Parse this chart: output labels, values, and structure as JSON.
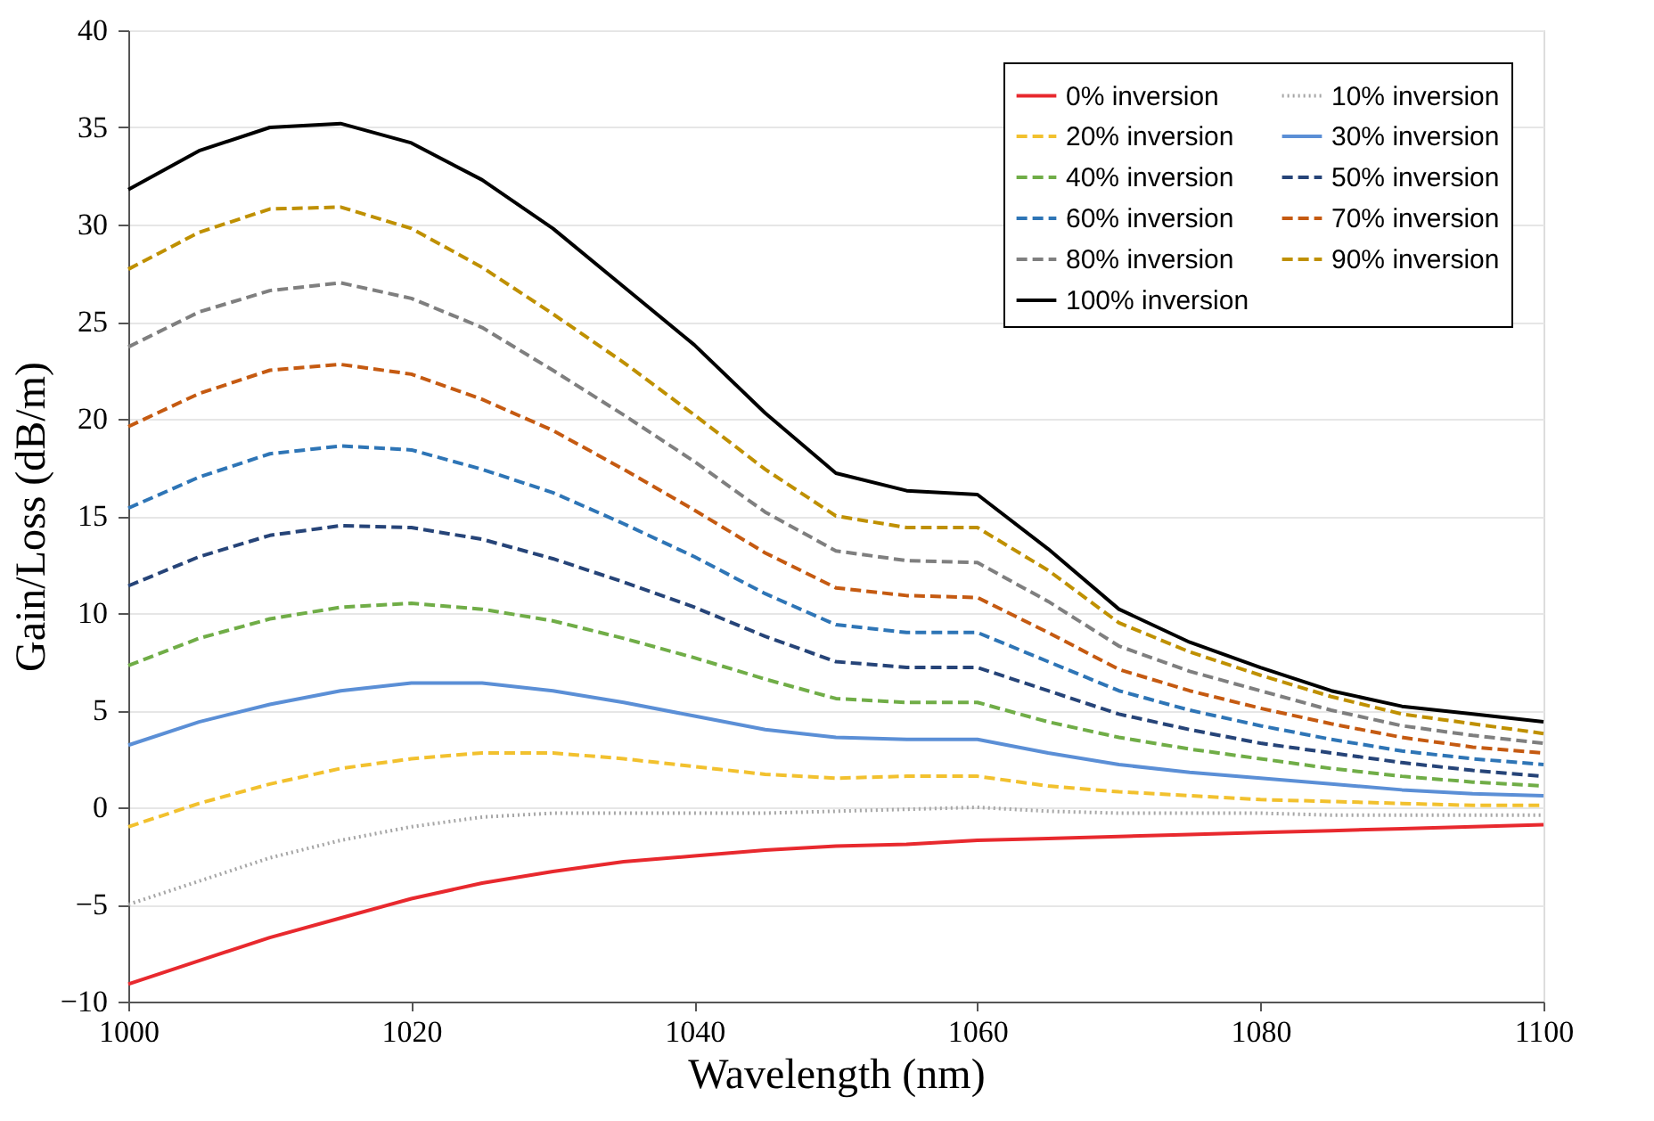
{
  "chart_data": {
    "type": "line",
    "xlabel": "Wavelength (nm)",
    "ylabel": "Gain/Loss (dB/m)",
    "x": [
      1000,
      1005,
      1010,
      1015,
      1020,
      1025,
      1030,
      1035,
      1040,
      1045,
      1050,
      1055,
      1060,
      1065,
      1070,
      1075,
      1080,
      1085,
      1090,
      1095,
      1100
    ],
    "xlim": [
      1000,
      1100
    ],
    "xticks": [
      1000,
      1020,
      1040,
      1060,
      1080,
      1100
    ],
    "ylim": [
      -10,
      40
    ],
    "yticks": [
      -10,
      -5,
      0,
      5,
      10,
      15,
      20,
      25,
      30,
      35,
      40
    ],
    "grid": "y",
    "legend": "top right",
    "marker": "none",
    "series": [
      {
        "name": "0% inversion",
        "color": "#e8292e",
        "line_style": "solid",
        "values": [
          -9.1,
          -7.9,
          -6.7,
          -5.7,
          -4.7,
          -3.9,
          -3.3,
          -2.8,
          -2.5,
          -2.2,
          -2.0,
          -1.9,
          -1.7,
          -1.6,
          -1.5,
          -1.4,
          -1.3,
          -1.2,
          -1.1,
          -1.0,
          -0.9
        ]
      },
      {
        "name": "10% inversion",
        "color": "#a6a6a6",
        "line_style": "dotted",
        "values": [
          -5.0,
          -3.8,
          -2.6,
          -1.7,
          -1.0,
          -0.5,
          -0.3,
          -0.3,
          -0.3,
          -0.3,
          -0.2,
          -0.1,
          0.0,
          -0.2,
          -0.3,
          -0.3,
          -0.3,
          -0.4,
          -0.4,
          -0.4,
          -0.4
        ]
      },
      {
        "name": "20% inversion",
        "color": "#f2c12e",
        "line_style": "dashed",
        "values": [
          -1.0,
          0.2,
          1.2,
          2.0,
          2.5,
          2.8,
          2.8,
          2.5,
          2.1,
          1.7,
          1.5,
          1.6,
          1.6,
          1.1,
          0.8,
          0.6,
          0.4,
          0.3,
          0.2,
          0.1,
          0.1
        ]
      },
      {
        "name": "30% inversion",
        "color": "#5b8fd6",
        "line_style": "solid",
        "values": [
          3.2,
          4.4,
          5.3,
          6.0,
          6.4,
          6.4,
          6.0,
          5.4,
          4.7,
          4.0,
          3.6,
          3.5,
          3.5,
          2.8,
          2.2,
          1.8,
          1.5,
          1.2,
          0.9,
          0.7,
          0.6
        ]
      },
      {
        "name": "40% inversion",
        "color": "#70ad47",
        "line_style": "dashed",
        "values": [
          7.3,
          8.7,
          9.7,
          10.3,
          10.5,
          10.2,
          9.6,
          8.7,
          7.7,
          6.6,
          5.6,
          5.4,
          5.4,
          4.4,
          3.6,
          3.0,
          2.5,
          2.0,
          1.6,
          1.3,
          1.1
        ]
      },
      {
        "name": "50% inversion",
        "color": "#264478",
        "line_style": "dashed",
        "values": [
          11.4,
          12.9,
          14.0,
          14.5,
          14.4,
          13.8,
          12.8,
          11.6,
          10.3,
          8.8,
          7.5,
          7.2,
          7.2,
          6.0,
          4.8,
          4.0,
          3.3,
          2.8,
          2.3,
          1.9,
          1.6
        ]
      },
      {
        "name": "60% inversion",
        "color": "#2e75b6",
        "line_style": "dashed",
        "values": [
          15.4,
          17.0,
          18.2,
          18.6,
          18.4,
          17.4,
          16.2,
          14.6,
          12.9,
          11.0,
          9.4,
          9.0,
          9.0,
          7.5,
          6.0,
          5.0,
          4.2,
          3.5,
          2.9,
          2.5,
          2.2
        ]
      },
      {
        "name": "70% inversion",
        "color": "#c55a11",
        "line_style": "dashed",
        "values": [
          19.6,
          21.3,
          22.5,
          22.8,
          22.3,
          21.0,
          19.4,
          17.4,
          15.3,
          13.1,
          11.3,
          10.9,
          10.8,
          9.0,
          7.1,
          6.0,
          5.1,
          4.3,
          3.6,
          3.1,
          2.8
        ]
      },
      {
        "name": "80% inversion",
        "color": "#7f7f7f",
        "line_style": "dashed",
        "values": [
          23.7,
          25.5,
          26.6,
          27.0,
          26.2,
          24.7,
          22.5,
          20.2,
          17.8,
          15.2,
          13.2,
          12.7,
          12.6,
          10.6,
          8.3,
          7.0,
          6.0,
          5.0,
          4.2,
          3.7,
          3.3
        ]
      },
      {
        "name": "90% inversion",
        "color": "#bf9000",
        "line_style": "dashed",
        "values": [
          27.7,
          29.6,
          30.8,
          30.9,
          29.8,
          27.8,
          25.4,
          22.9,
          20.2,
          17.4,
          15.0,
          14.4,
          14.4,
          12.2,
          9.5,
          8.0,
          6.8,
          5.7,
          4.8,
          4.3,
          3.8
        ]
      },
      {
        "name": "100% inversion",
        "color": "#000000",
        "line_style": "solid",
        "values": [
          31.8,
          33.8,
          35.0,
          35.2,
          34.2,
          32.3,
          29.8,
          26.8,
          23.8,
          20.3,
          17.2,
          16.3,
          16.1,
          13.3,
          10.2,
          8.5,
          7.2,
          6.0,
          5.2,
          4.8,
          4.4
        ]
      }
    ]
  }
}
